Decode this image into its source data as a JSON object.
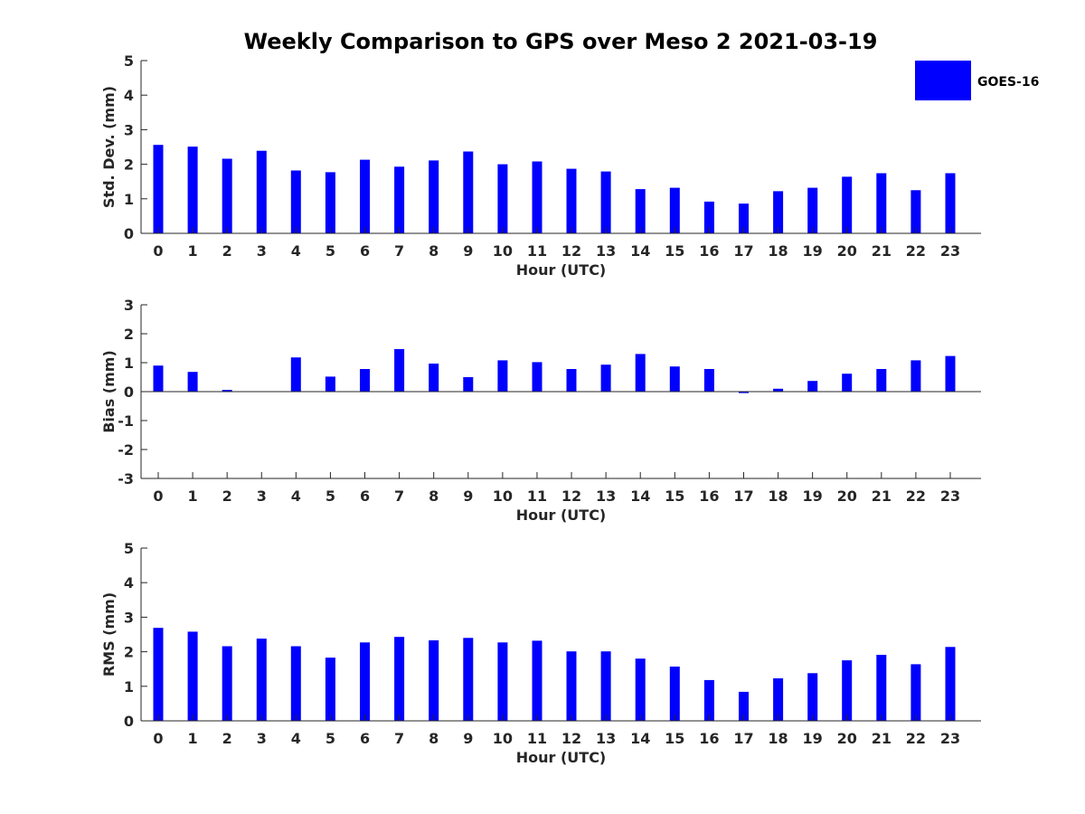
{
  "title": "Weekly Comparison to GPS over Meso 2 2021-03-19",
  "legend": {
    "label": "GOES-16",
    "color": "#0000ff"
  },
  "chart_data": [
    {
      "type": "bar",
      "name": "std-dev",
      "title": "Weekly Comparison to GPS over Meso 2 2021-03-19",
      "xlabel": "Hour (UTC)",
      "ylabel": "Std. Dev. (mm)",
      "ylim": [
        0,
        5
      ],
      "yticks": [
        0,
        1,
        2,
        3,
        4,
        5
      ],
      "categories": [
        "0",
        "1",
        "2",
        "3",
        "4",
        "5",
        "6",
        "7",
        "8",
        "9",
        "10",
        "11",
        "12",
        "13",
        "14",
        "15",
        "16",
        "17",
        "18",
        "19",
        "20",
        "21",
        "22",
        "23"
      ],
      "series": [
        {
          "name": "GOES-16",
          "color": "#0000ff",
          "values": [
            2.56,
            2.51,
            2.16,
            2.39,
            1.82,
            1.77,
            2.13,
            1.93,
            2.11,
            2.37,
            2.0,
            2.08,
            1.87,
            1.79,
            1.28,
            1.32,
            0.92,
            0.86,
            1.22,
            1.32,
            1.64,
            1.74,
            1.25,
            1.74
          ]
        }
      ]
    },
    {
      "type": "bar",
      "name": "bias",
      "xlabel": "Hour (UTC)",
      "ylabel": "Bias (mm)",
      "ylim": [
        -3,
        3
      ],
      "yticks": [
        -3,
        -2,
        -1,
        0,
        1,
        2,
        3
      ],
      "categories": [
        "0",
        "1",
        "2",
        "3",
        "4",
        "5",
        "6",
        "7",
        "8",
        "9",
        "10",
        "11",
        "12",
        "13",
        "14",
        "15",
        "16",
        "17",
        "18",
        "19",
        "20",
        "21",
        "22",
        "23"
      ],
      "series": [
        {
          "name": "GOES-16",
          "color": "#0000ff",
          "values": [
            0.9,
            0.68,
            0.06,
            0.0,
            1.18,
            0.52,
            0.78,
            1.47,
            0.97,
            0.5,
            1.08,
            1.02,
            0.78,
            0.93,
            1.3,
            0.87,
            0.78,
            -0.05,
            0.1,
            0.37,
            0.62,
            0.78,
            1.08,
            1.23
          ]
        }
      ]
    },
    {
      "type": "bar",
      "name": "rms",
      "xlabel": "Hour (UTC)",
      "ylabel": "RMS (mm)",
      "ylim": [
        0,
        5
      ],
      "yticks": [
        0,
        1,
        2,
        3,
        4,
        5
      ],
      "categories": [
        "0",
        "1",
        "2",
        "3",
        "4",
        "5",
        "6",
        "7",
        "8",
        "9",
        "10",
        "11",
        "12",
        "13",
        "14",
        "15",
        "16",
        "17",
        "18",
        "19",
        "20",
        "21",
        "22",
        "23"
      ],
      "series": [
        {
          "name": "GOES-16",
          "color": "#0000ff",
          "values": [
            2.69,
            2.58,
            2.16,
            2.38,
            2.16,
            1.83,
            2.27,
            2.43,
            2.33,
            2.4,
            2.27,
            2.32,
            2.01,
            2.01,
            1.8,
            1.57,
            1.18,
            0.84,
            1.23,
            1.38,
            1.75,
            1.91,
            1.64,
            2.14
          ]
        }
      ]
    }
  ]
}
